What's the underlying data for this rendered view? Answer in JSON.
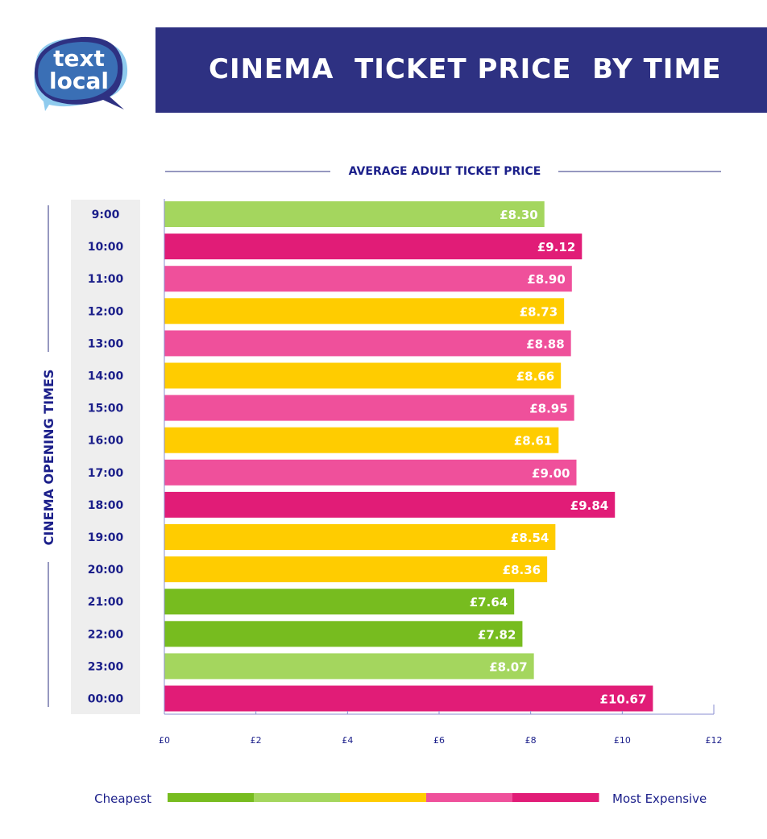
{
  "logo": {
    "line1": "text",
    "line2": "local"
  },
  "header": {
    "title": "CINEMA  TICKET PRICE  BY TIME"
  },
  "colors": {
    "navy": "#2e3182",
    "text": "#1b1f8a",
    "dark_green": "#77bc1f",
    "light_green": "#a4d65e",
    "yellow": "#ffcc00",
    "pink": "#ef509b",
    "magenta": "#e11c77"
  },
  "chart_data": {
    "type": "bar",
    "orientation": "horizontal",
    "title": "AVERAGE ADULT TICKET PRICE",
    "ylabel": "CINEMA OPENING TIMES",
    "xlabel": "",
    "categories": [
      "9:00",
      "10:00",
      "11:00",
      "12:00",
      "13:00",
      "14:00",
      "15:00",
      "16:00",
      "17:00",
      "18:00",
      "19:00",
      "20:00",
      "21:00",
      "22:00",
      "23:00",
      "00:00"
    ],
    "values": [
      8.3,
      9.12,
      8.9,
      8.73,
      8.88,
      8.66,
      8.95,
      8.61,
      9.0,
      9.84,
      8.54,
      8.36,
      7.64,
      7.82,
      8.07,
      10.67
    ],
    "labels": [
      "£8.30",
      "£9.12",
      "£8.90",
      "£8.73",
      "£8.88",
      "£8.66",
      "£8.95",
      "£8.61",
      "£9.00",
      "£9.84",
      "£8.54",
      "£8.36",
      "£7.64",
      "£7.82",
      "£8.07",
      "£10.67"
    ],
    "tiers": [
      1,
      4,
      3,
      2,
      3,
      2,
      3,
      2,
      3,
      4,
      2,
      2,
      0,
      0,
      1,
      4
    ],
    "xlim": [
      0,
      12
    ],
    "xticks": [
      0,
      2,
      4,
      6,
      8,
      10,
      12
    ],
    "xtick_labels": [
      "£0",
      "£2",
      "£4",
      "£6",
      "£8",
      "£10",
      "£12"
    ],
    "legend": {
      "low_label": "Cheapest",
      "high_label": "Most Expensive",
      "tier_colors": [
        "#77bc1f",
        "#a4d65e",
        "#ffcc00",
        "#ef509b",
        "#e11c77"
      ],
      "placement": "bottom"
    }
  }
}
